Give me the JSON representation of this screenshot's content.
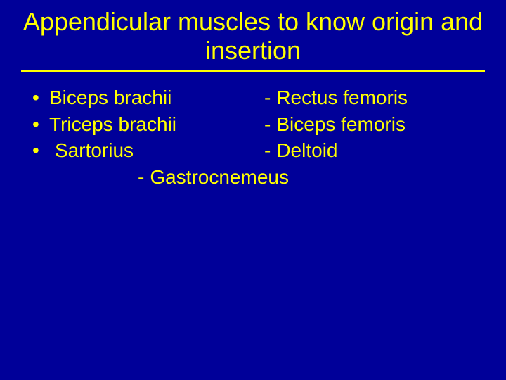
{
  "colors": {
    "background": "#000099",
    "text": "#ffff00",
    "underline": "#ffff00"
  },
  "typography": {
    "title_fontsize": 36,
    "body_fontsize": 28,
    "font_family": "Arial"
  },
  "title": "Appendicular muscles to know origin and insertion",
  "rows": [
    {
      "left_bullet": "•",
      "left_text": "Biceps brachii",
      "right_dash": "-",
      "right_text": "Rectus femoris"
    },
    {
      "left_bullet": "•",
      "left_text": "Triceps brachii",
      "right_dash": "-",
      "right_text": "Biceps femoris"
    },
    {
      "left_bullet": "•",
      "left_text": "Sartorius",
      "right_dash": "-",
      "right_text": "Deltoid",
      "left_extra_indent": true
    }
  ],
  "last_row": {
    "dash": "-",
    "text": "Gastrocnemeus"
  }
}
